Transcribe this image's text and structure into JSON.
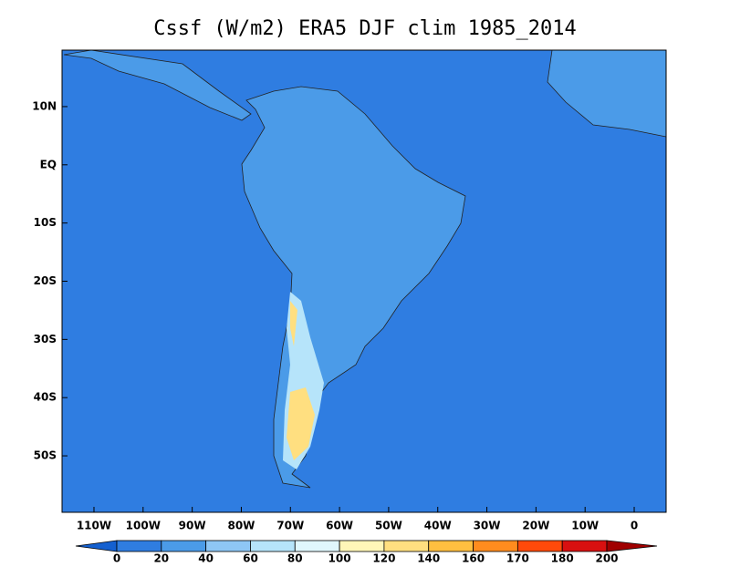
{
  "title": "Cssf (W/m2) ERA5 DJF clim 1985_2014",
  "lonlim": [
    -116.5,
    6.5
  ],
  "latlim": [
    -59.7,
    19.7
  ],
  "lon_ticks": [
    {
      "value": -110,
      "label": "110W"
    },
    {
      "value": -100,
      "label": "100W"
    },
    {
      "value": -90,
      "label": "90W"
    },
    {
      "value": -80,
      "label": "80W"
    },
    {
      "value": -70,
      "label": "70W"
    },
    {
      "value": -60,
      "label": "60W"
    },
    {
      "value": -50,
      "label": "50W"
    },
    {
      "value": -40,
      "label": "40W"
    },
    {
      "value": -30,
      "label": "30W"
    },
    {
      "value": -20,
      "label": "20W"
    },
    {
      "value": -10,
      "label": "10W"
    },
    0
  ],
  "lat_ticks": [
    {
      "value": 10,
      "label": "10N"
    },
    {
      "value": 0,
      "label": "EQ"
    },
    {
      "value": -10,
      "label": "10S"
    },
    {
      "value": -20,
      "label": "20S"
    },
    {
      "value": -30,
      "label": "30S"
    },
    {
      "value": -40,
      "label": "40S"
    },
    {
      "value": -50,
      "label": "50S"
    }
  ],
  "colorbar": {
    "levels": [
      0,
      20,
      40,
      60,
      80,
      100,
      120,
      140,
      160,
      170,
      180,
      200
    ],
    "colors": [
      "#1460d0",
      "#2f7de1",
      "#4b9be8",
      "#8ec6f5",
      "#b6e4fa",
      "#e0f7fd",
      "#fff6b8",
      "#ffdf80",
      "#ffbf40",
      "#ff8c1e",
      "#ff4a0a",
      "#d81010",
      "#a00000"
    ]
  }
}
